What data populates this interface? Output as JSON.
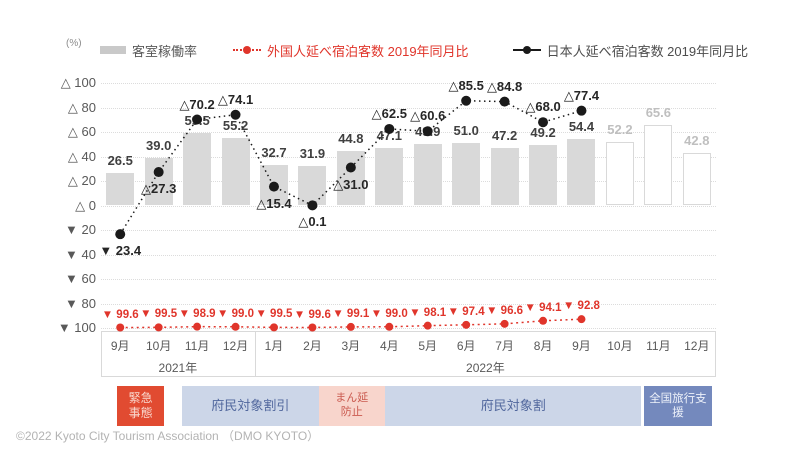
{
  "header": {
    "unit_label": "(%)"
  },
  "legend": {
    "occupancy": "客室稼働率",
    "foreign": "外国人延べ宿泊客数 2019年同月比",
    "japanese": "日本人延べ宿泊客数 2019年同月比"
  },
  "chart_data": {
    "type": "combo-bar-line",
    "ylim": [
      -100,
      100
    ],
    "ytick_step": 20,
    "ytick_prefix_positive": "△",
    "ytick_prefix_negative": "▼",
    "grid": "dotted",
    "categories": [
      "9月",
      "10月",
      "11月",
      "12月",
      "1月",
      "2月",
      "3月",
      "4月",
      "5月",
      "6月",
      "7月",
      "8月",
      "9月",
      "10月",
      "11月",
      "12月"
    ],
    "year_groups": [
      {
        "label": "2021年",
        "from": 0,
        "to": 3
      },
      {
        "label": "2022年",
        "from": 4,
        "to": 15
      }
    ],
    "series": [
      {
        "name": "客室稼働率",
        "type": "bar",
        "values": [
          26.5,
          39.0,
          59.5,
          55.2,
          32.7,
          31.9,
          44.8,
          47.1,
          49.9,
          51.0,
          47.2,
          49.2,
          54.4,
          52.2,
          65.6,
          42.8
        ],
        "forecast_from_index": 13
      },
      {
        "name": "日本人延べ宿泊客数 2019年同月比",
        "type": "line",
        "values": [
          -23.4,
          27.3,
          70.2,
          74.1,
          15.4,
          0.1,
          31.0,
          62.5,
          60.6,
          85.5,
          84.8,
          68.0,
          77.4
        ],
        "label_positions": [
          "below",
          "below",
          "above",
          "above",
          "below",
          "below",
          "below",
          "above",
          "above",
          "above",
          "above",
          "above",
          "above"
        ]
      },
      {
        "name": "外国人延べ宿泊客数 2019年同月比",
        "type": "line",
        "values": [
          -99.6,
          -99.5,
          -98.9,
          -99.0,
          -99.5,
          -99.6,
          -99.1,
          -99.0,
          -98.1,
          -97.4,
          -96.6,
          -94.1,
          -92.8
        ]
      }
    ],
    "covid_bands": [
      {
        "id": "emergency",
        "style": "emergency",
        "lines": [
          "緊急",
          "事態"
        ],
        "start": 0.42,
        "end": 1.64
      },
      {
        "id": "fumin-discount",
        "style": "discount",
        "lines": [
          "府民対象割引"
        ],
        "start": 2.1,
        "end": 5.67
      },
      {
        "id": "manen-boushi",
        "style": "manen",
        "lines": [
          "まん延",
          "防止"
        ],
        "start": 5.67,
        "end": 7.38
      },
      {
        "id": "fumin-wari",
        "style": "discount",
        "lines": [
          "府民対象割"
        ],
        "start": 7.4,
        "end": 14.05
      },
      {
        "id": "national-travel",
        "style": "national",
        "lines": [
          "全国旅行支援"
        ],
        "start": 14.12,
        "end": 15.9
      }
    ]
  },
  "colors": {
    "bar": "#d9d9d9",
    "japanese_line": "#1a1a1a",
    "foreign_line": "#e0352b",
    "grid": "#dcdcdc",
    "axis_text": "#595959"
  },
  "footer": {
    "copyright": "©2022 Kyoto City Tourism Association （DMO KYOTO）"
  }
}
